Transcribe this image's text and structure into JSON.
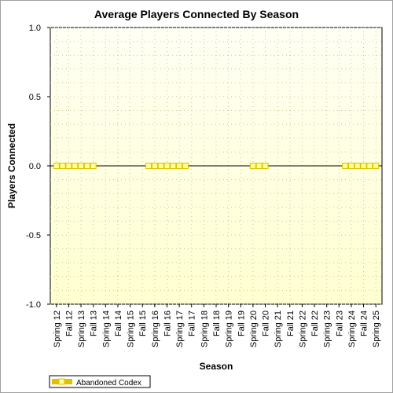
{
  "chart_data": {
    "type": "line",
    "title": "Average Players Connected By Season",
    "xlabel": "Season",
    "ylabel": "Players Connected",
    "ylim": [
      -1.0,
      1.0
    ],
    "yticks": [
      "1.0",
      "0.5",
      "0.0",
      "-0.5",
      "-1.0"
    ],
    "ytick_values": [
      1.0,
      0.5,
      0.0,
      -0.5,
      -1.0
    ],
    "categories": [
      "Spring 12",
      "Fall 12",
      "Spring 13",
      "Fall 13",
      "Spring 14",
      "Fall 14",
      "Spring 15",
      "Fall 15",
      "Spring 16",
      "Fall 16",
      "Spring 17",
      "Fall 17",
      "Spring 18",
      "Fall 18",
      "Spring 19",
      "Fall 19",
      "Spring 20",
      "Fall 20",
      "Spring 21",
      "Fall 21",
      "Spring 22",
      "Fall 22",
      "Spring 23",
      "Fall 23",
      "Spring 24",
      "Fall 24",
      "Spring 25"
    ],
    "grid": true,
    "legend_position": "bottom-left",
    "series": [
      {
        "name": "Abandoned Codex",
        "color": "#e0c000",
        "marker_fill": "#ffff99",
        "segments": [
          {
            "x": [
              0,
              0.5,
              1,
              1.5,
              2,
              2.5,
              3
            ],
            "y": [
              0,
              0,
              0,
              0,
              0,
              0,
              0
            ]
          },
          {
            "x": [
              7.5,
              8,
              8.5,
              9,
              9.5,
              10,
              10.5
            ],
            "y": [
              0,
              0,
              0,
              0,
              0,
              0,
              0
            ]
          },
          {
            "x": [
              16,
              16.5,
              17
            ],
            "y": [
              0,
              0,
              0
            ]
          },
          {
            "x": [
              23.5,
              24,
              24.5,
              25,
              25.5,
              26
            ],
            "y": [
              0,
              0,
              0,
              0,
              0,
              0
            ]
          }
        ]
      }
    ],
    "colors": {
      "plot_bg_top": "#fffff4",
      "plot_bg_bottom": "#ffffd0",
      "grid": "#c8c8a0",
      "zero_line": "#000000"
    }
  }
}
